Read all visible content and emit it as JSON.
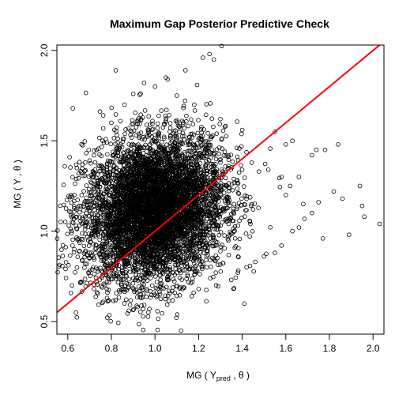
{
  "chart_data": {
    "type": "scatter",
    "title": "Maximum Gap Posterior Predictive Check",
    "xlabel": {
      "prefix": "MG ( Y",
      "subscript": "pred",
      "suffix": " , θ )"
    },
    "ylabel": "MG ( Y , θ )",
    "xlim": [
      0.55,
      2.05
    ],
    "ylim": [
      0.43,
      2.03
    ],
    "x_ticks": [
      0.6,
      0.8,
      1.0,
      1.2,
      1.4,
      1.6,
      1.8,
      2.0
    ],
    "x_tick_labels": [
      "0.6",
      "0.8",
      "1.0",
      "1.2",
      "1.4",
      "1.6",
      "1.8",
      "2.0"
    ],
    "y_ticks": [
      0.5,
      1.0,
      1.5,
      2.0
    ],
    "y_tick_labels": [
      "0.5",
      "1.0",
      "1.5",
      "2.0"
    ],
    "grid": false,
    "point_style": "open-circle",
    "cloud": {
      "x_mean": 1.0,
      "x_sd": 0.16,
      "y_mean": 1.12,
      "y_sd": 0.2,
      "correlation": 0.15,
      "n_points": 6000
    },
    "points": [
      [
        1.25,
        1.98
      ],
      [
        1.22,
        1.96
      ],
      [
        1.27,
        1.95
      ],
      [
        1.14,
        1.89
      ],
      [
        0.82,
        1.89
      ],
      [
        1.05,
        1.85
      ],
      [
        0.95,
        1.82
      ],
      [
        1.63,
        1.5
      ],
      [
        1.6,
        1.48
      ],
      [
        1.55,
        1.55
      ],
      [
        1.74,
        1.45
      ],
      [
        1.84,
        1.48
      ],
      [
        1.78,
        1.45
      ],
      [
        1.72,
        1.42
      ],
      [
        1.82,
        1.22
      ],
      [
        1.86,
        1.18
      ],
      [
        1.94,
        1.25
      ],
      [
        1.95,
        1.14
      ],
      [
        1.96,
        1.08
      ],
      [
        2.03,
        1.04
      ],
      [
        1.89,
        0.98
      ],
      [
        1.77,
        0.96
      ],
      [
        1.75,
        1.16
      ],
      [
        1.68,
        1.15
      ],
      [
        1.72,
        1.1
      ],
      [
        1.66,
        1.02
      ],
      [
        1.63,
        1.0
      ],
      [
        1.58,
        0.92
      ],
      [
        1.55,
        0.88
      ],
      [
        1.5,
        0.86
      ],
      [
        1.46,
        0.83
      ],
      [
        1.42,
        0.8
      ],
      [
        1.38,
        0.77
      ],
      [
        1.35,
        0.73
      ],
      [
        1.28,
        0.7
      ],
      [
        1.2,
        0.68
      ],
      [
        1.12,
        0.45
      ],
      [
        0.92,
        0.58
      ],
      [
        0.86,
        0.6
      ],
      [
        0.88,
        0.56
      ],
      [
        0.78,
        0.63
      ],
      [
        0.72,
        0.68
      ],
      [
        0.66,
        0.72
      ],
      [
        0.63,
        0.9
      ],
      [
        0.62,
        1.05
      ],
      [
        0.64,
        1.12
      ],
      [
        0.63,
        1.2
      ],
      [
        0.65,
        1.32
      ],
      [
        0.68,
        1.38
      ],
      [
        0.72,
        1.42
      ],
      [
        0.76,
        1.5
      ],
      [
        0.8,
        1.6
      ],
      [
        0.86,
        1.7
      ],
      [
        0.9,
        1.76
      ],
      [
        1.0,
        1.8
      ],
      [
        1.1,
        1.75
      ],
      [
        1.18,
        1.7
      ],
      [
        1.3,
        1.62
      ],
      [
        1.4,
        1.56
      ],
      [
        1.52,
        1.34
      ],
      [
        1.58,
        1.3
      ],
      [
        1.62,
        1.25
      ],
      [
        1.6,
        1.2
      ],
      [
        1.66,
        1.3
      ]
    ],
    "reference_line": {
      "type": "abline",
      "intercept": 0.0,
      "slope": 1.0,
      "color": "#ff0000"
    }
  }
}
